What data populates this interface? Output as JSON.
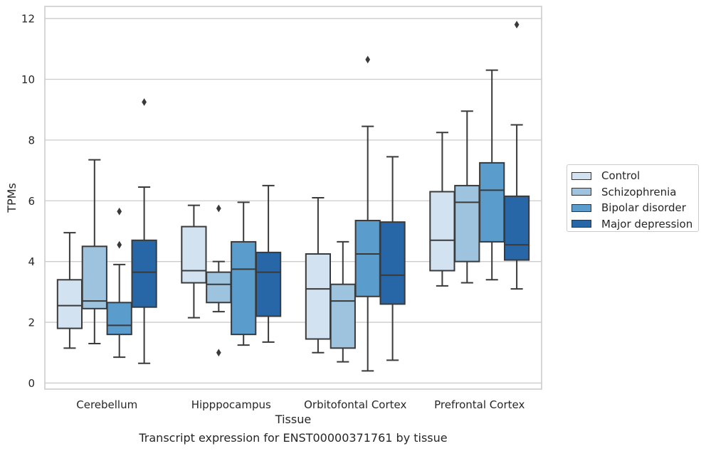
{
  "chart_data": {
    "type": "boxplot",
    "xlabel": "Tissue",
    "ylabel": "TPMs",
    "caption": "Transcript expression for ENST00000371761 by tissue",
    "ylim": [
      -0.2,
      12.4
    ],
    "yticks": [
      0,
      2,
      4,
      6,
      8,
      10,
      12
    ],
    "grid": "horizontal",
    "legend_position": "right",
    "categories": [
      "Cerebellum",
      "Hipppocampus",
      "Orbitofontal Cortex",
      "Prefrontal Cortex"
    ],
    "series": [
      {
        "name": "Control",
        "color": "#d2e2f0",
        "boxes": [
          {
            "whislo": 1.15,
            "q1": 1.8,
            "med": 2.55,
            "q3": 3.4,
            "whishi": 4.95,
            "fliers": []
          },
          {
            "whislo": 2.15,
            "q1": 3.3,
            "med": 3.7,
            "q3": 5.15,
            "whishi": 5.85,
            "fliers": []
          },
          {
            "whislo": 1.0,
            "q1": 1.45,
            "med": 3.1,
            "q3": 4.25,
            "whishi": 6.1,
            "fliers": []
          },
          {
            "whislo": 3.2,
            "q1": 3.7,
            "med": 4.7,
            "q3": 6.3,
            "whishi": 8.25,
            "fliers": []
          }
        ]
      },
      {
        "name": "Schizophrenia",
        "color": "#9dc3df",
        "boxes": [
          {
            "whislo": 1.3,
            "q1": 2.45,
            "med": 2.7,
            "q3": 4.5,
            "whishi": 7.35,
            "fliers": []
          },
          {
            "whislo": 2.35,
            "q1": 2.65,
            "med": 3.25,
            "q3": 3.65,
            "whishi": 4.0,
            "fliers": [
              5.75,
              1.0
            ]
          },
          {
            "whislo": 0.7,
            "q1": 1.15,
            "med": 2.7,
            "q3": 3.25,
            "whishi": 4.65,
            "fliers": []
          },
          {
            "whislo": 3.3,
            "q1": 4.0,
            "med": 5.95,
            "q3": 6.5,
            "whishi": 8.95,
            "fliers": []
          }
        ]
      },
      {
        "name": "Bipolar disorder",
        "color": "#5a9ccc",
        "boxes": [
          {
            "whislo": 0.85,
            "q1": 1.6,
            "med": 1.9,
            "q3": 2.65,
            "whishi": 3.9,
            "fliers": [
              5.65,
              4.55
            ]
          },
          {
            "whislo": 1.25,
            "q1": 1.6,
            "med": 3.75,
            "q3": 4.65,
            "whishi": 5.95,
            "fliers": []
          },
          {
            "whislo": 0.4,
            "q1": 2.85,
            "med": 4.25,
            "q3": 5.35,
            "whishi": 8.45,
            "fliers": [
              10.65
            ]
          },
          {
            "whislo": 3.4,
            "q1": 4.65,
            "med": 6.35,
            "q3": 7.25,
            "whishi": 10.3,
            "fliers": []
          }
        ]
      },
      {
        "name": "Major depression",
        "color": "#2767a8",
        "boxes": [
          {
            "whislo": 0.65,
            "q1": 2.5,
            "med": 3.65,
            "q3": 4.7,
            "whishi": 6.45,
            "fliers": [
              9.25
            ]
          },
          {
            "whislo": 1.35,
            "q1": 2.2,
            "med": 3.65,
            "q3": 4.3,
            "whishi": 6.5,
            "fliers": []
          },
          {
            "whislo": 0.75,
            "q1": 2.6,
            "med": 3.55,
            "q3": 5.3,
            "whishi": 7.45,
            "fliers": []
          },
          {
            "whislo": 3.1,
            "q1": 4.05,
            "med": 4.55,
            "q3": 6.15,
            "whishi": 8.5,
            "fliers": [
              11.8
            ]
          }
        ]
      }
    ]
  }
}
